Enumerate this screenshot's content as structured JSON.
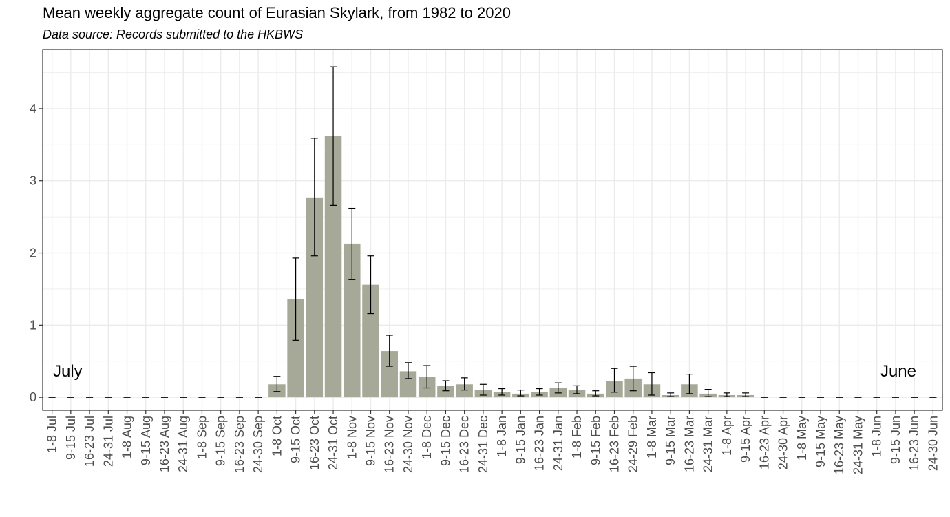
{
  "title": "Mean weekly aggregate count of Eurasian Skylark, from 1982 to 2020",
  "subtitle": "Data source: Records submitted to the HKBWS",
  "colors": {
    "bar": "#a6a898",
    "grid": "#ebebeb",
    "frame": "#333333",
    "errorbar": "#000000"
  },
  "chart_data": {
    "type": "bar",
    "categories": [
      "1-8 Jul",
      "9-15 Jul",
      "16-23 Jul",
      "24-31 Jul",
      "1-8 Aug",
      "9-15 Aug",
      "16-23 Aug",
      "24-31 Aug",
      "1-8 Sep",
      "9-15 Sep",
      "16-23 Sep",
      "24-30 Sep",
      "1-8 Oct",
      "9-15 Oct",
      "16-23 Oct",
      "24-31 Oct",
      "1-8 Nov",
      "9-15 Nov",
      "16-23 Nov",
      "24-30 Nov",
      "1-8 Dec",
      "9-15 Dec",
      "16-23 Dec",
      "24-31 Dec",
      "1-8 Jan",
      "9-15 Jan",
      "16-23 Jan",
      "24-31 Jan",
      "1-8 Feb",
      "9-15 Feb",
      "16-23 Feb",
      "24-29 Feb",
      "1-8 Mar",
      "9-15 Mar",
      "16-23 Mar",
      "24-31 Mar",
      "1-8 Apr",
      "9-15 Apr",
      "16-23 Apr",
      "24-30 Apr",
      "1-8 May",
      "9-15 May",
      "16-23 May",
      "24-31 May",
      "1-8 Jun",
      "9-15 Jun",
      "16-23 Jun",
      "24-30 Jun"
    ],
    "values": [
      0,
      0,
      0,
      0,
      0,
      0,
      0,
      0,
      0,
      0,
      0,
      0,
      0.18,
      1.36,
      2.77,
      3.62,
      2.13,
      1.56,
      0.64,
      0.36,
      0.28,
      0.16,
      0.18,
      0.1,
      0.07,
      0.05,
      0.07,
      0.13,
      0.1,
      0.05,
      0.23,
      0.26,
      0.18,
      0.03,
      0.18,
      0.05,
      0.03,
      0.03,
      0,
      0,
      0,
      0,
      0,
      0,
      0,
      0,
      0,
      0
    ],
    "error_low": [
      0,
      0,
      0,
      0,
      0,
      0,
      0,
      0,
      0,
      0,
      0,
      0,
      0.08,
      0.79,
      1.96,
      2.66,
      1.63,
      1.16,
      0.43,
      0.26,
      0.13,
      0.09,
      0.1,
      0.03,
      0.03,
      0.02,
      0.03,
      0.06,
      0.05,
      0.02,
      0.07,
      0.09,
      0.03,
      0.01,
      0.05,
      0.01,
      0.01,
      0.01,
      0,
      0,
      0,
      0,
      0,
      0,
      0,
      0,
      0,
      0
    ],
    "error_high": [
      0,
      0,
      0,
      0,
      0,
      0,
      0,
      0,
      0,
      0,
      0,
      0,
      0.29,
      1.93,
      3.59,
      4.58,
      2.62,
      1.96,
      0.86,
      0.48,
      0.44,
      0.23,
      0.27,
      0.18,
      0.12,
      0.1,
      0.12,
      0.2,
      0.16,
      0.09,
      0.4,
      0.43,
      0.34,
      0.06,
      0.32,
      0.11,
      0.06,
      0.06,
      0,
      0,
      0,
      0,
      0,
      0,
      0,
      0,
      0,
      0
    ],
    "yticks": [
      0,
      1,
      2,
      3,
      4
    ],
    "ylim": [
      -0.18,
      4.82
    ],
    "grid": true,
    "annotations": [
      {
        "text": "July",
        "position": "left"
      },
      {
        "text": "June",
        "position": "right"
      }
    ]
  }
}
